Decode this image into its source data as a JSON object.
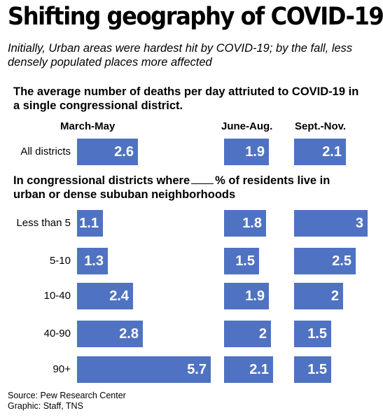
{
  "title": "Shifting geography of COVID-19",
  "subtitle": "Initially, Urban areas were hardest hit by COVID-19; by the fall, less densely populated places more affected",
  "heading1": "The average number of deaths per day attriuted to COVID-19 in a single congressional district.",
  "heading2_before": "In congressional districts where",
  "heading2_after": "% of residents live in urban or dense sububan neighborhoods",
  "source": "Source: Pew Research Center",
  "credit": "Graphic: Staff, TNS",
  "colors": {
    "bar": "#4f73c2",
    "label": "#ffffff"
  },
  "chart_data": {
    "type": "bar",
    "orientation": "horizontal",
    "categories": [
      "All districts",
      "Less than 5",
      "5-10",
      "10-40",
      "40-90",
      "90+"
    ],
    "series": [
      {
        "name": "March-May",
        "values": [
          2.6,
          1.1,
          1.3,
          2.4,
          2.8,
          5.7
        ]
      },
      {
        "name": "June-Aug.",
        "values": [
          1.9,
          1.8,
          1.5,
          1.9,
          2.0,
          2.1
        ]
      },
      {
        "name": "Sept.-Nov.",
        "values": [
          2.1,
          3.0,
          2.5,
          2.0,
          1.5,
          1.5
        ]
      }
    ],
    "value_labels": [
      [
        "2.6",
        "1.1",
        "1.3",
        "2.4",
        "2.8",
        "5.7"
      ],
      [
        "1.9",
        "1.8",
        "1.5",
        "1.9",
        "2",
        "2.1"
      ],
      [
        "2.1",
        "3",
        "2.5",
        "2",
        "1.5",
        "1.5"
      ]
    ],
    "grid": false,
    "legend": "none"
  }
}
